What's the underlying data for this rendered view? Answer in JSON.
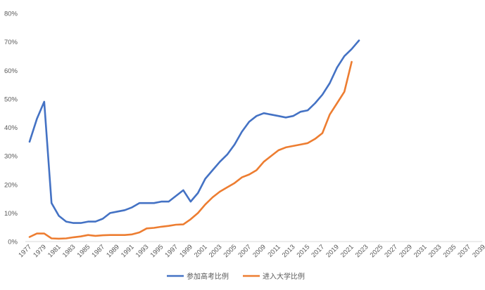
{
  "chart_data": {
    "type": "line",
    "title": "",
    "xlabel": "",
    "ylabel": "",
    "ylim": [
      0,
      80
    ],
    "yticks": [
      "0%",
      "10%",
      "20%",
      "30%",
      "40%",
      "50%",
      "60%",
      "70%",
      "80%"
    ],
    "x_tick_labels": [
      "1977",
      "1979",
      "1981",
      "1983",
      "1985",
      "1987",
      "1989",
      "1991",
      "1993",
      "1995",
      "1997",
      "1999",
      "2001",
      "2003",
      "2005",
      "2007",
      "2009",
      "2011",
      "2013",
      "2015",
      "2017",
      "2019",
      "2021",
      "2023",
      "2025",
      "2027",
      "2029",
      "2031",
      "2033",
      "2035",
      "2037",
      "2039"
    ],
    "x_start": 1977,
    "x_end": 2040,
    "grid": false,
    "legend": "bottom",
    "series": [
      {
        "name": "参加高考比例",
        "color": "#4472C4",
        "x_start": 1977,
        "values": [
          35,
          43,
          49,
          13.5,
          9,
          7,
          6.5,
          6.5,
          7,
          7,
          8,
          10,
          10.5,
          11,
          12,
          13.5,
          13.5,
          13.5,
          14,
          14,
          16,
          18,
          14,
          17,
          22,
          25,
          28,
          30.5,
          34,
          38.5,
          42,
          44,
          45,
          44.5,
          44,
          43.5,
          44,
          45.5,
          46,
          48.5,
          51.5,
          55.5,
          61,
          65,
          67.5,
          70.5
        ]
      },
      {
        "name": "进入大学比例",
        "color": "#ED7D31",
        "x_start": 1977,
        "values": [
          1.6,
          2.8,
          2.8,
          1.1,
          1,
          1.1,
          1.5,
          1.8,
          2.3,
          2,
          2.2,
          2.3,
          2.3,
          2.3,
          2.5,
          3.2,
          4.6,
          4.8,
          5.2,
          5.5,
          5.9,
          6,
          7.8,
          10,
          13,
          15.5,
          17.5,
          19,
          20.5,
          22.5,
          23.5,
          25,
          28,
          30,
          32,
          33,
          33.5,
          34,
          34.5,
          36,
          38,
          44.5,
          48.5,
          52.5,
          63
        ]
      }
    ]
  }
}
